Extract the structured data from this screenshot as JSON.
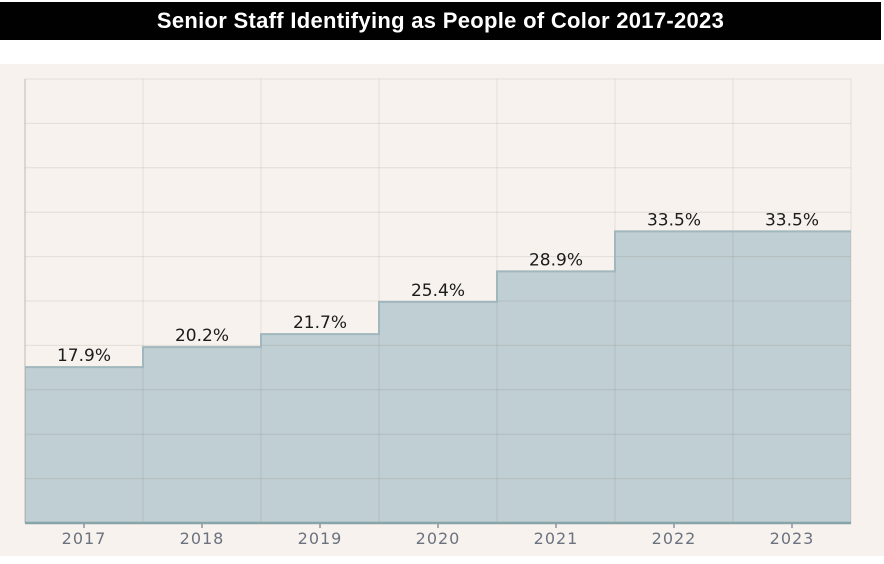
{
  "title_bar": {
    "text": "Senior Staff Identifying as People of Color 2017-2023"
  },
  "chart_data": {
    "type": "area",
    "subtype": "step",
    "title": "Senior Staff Identifying as People of Color 2017-2023",
    "categories": [
      "2017",
      "2018",
      "2019",
      "2020",
      "2021",
      "2022",
      "2023"
    ],
    "values": [
      17.9,
      20.2,
      21.7,
      25.4,
      28.9,
      33.5,
      33.5
    ],
    "value_labels": [
      "17.9%",
      "20.2%",
      "21.7%",
      "25.4%",
      "28.9%",
      "33.5%",
      "33.5%"
    ],
    "xlabel": "",
    "ylabel": "",
    "ylim": [
      0,
      51
    ],
    "gridline_interval_pct": 5.1,
    "grid": true,
    "legend": false
  },
  "colors": {
    "title_bg": "#010101",
    "title_fg": "#ffffff",
    "panel_bg": "#f7f2ed",
    "area_fill": "#b6c9ce",
    "area_fill_opacity": "0.85",
    "step_stroke": "#a0b7bd",
    "baseline_stroke": "#87a4a8",
    "grid_stroke": "rgba(70,58,45,0.11)",
    "axis_stroke": "rgba(70,58,45,0.30)",
    "tick_stroke": "#8b939e",
    "value_label_color": "#1b1b1b",
    "year_label_color": "#6b7280"
  }
}
